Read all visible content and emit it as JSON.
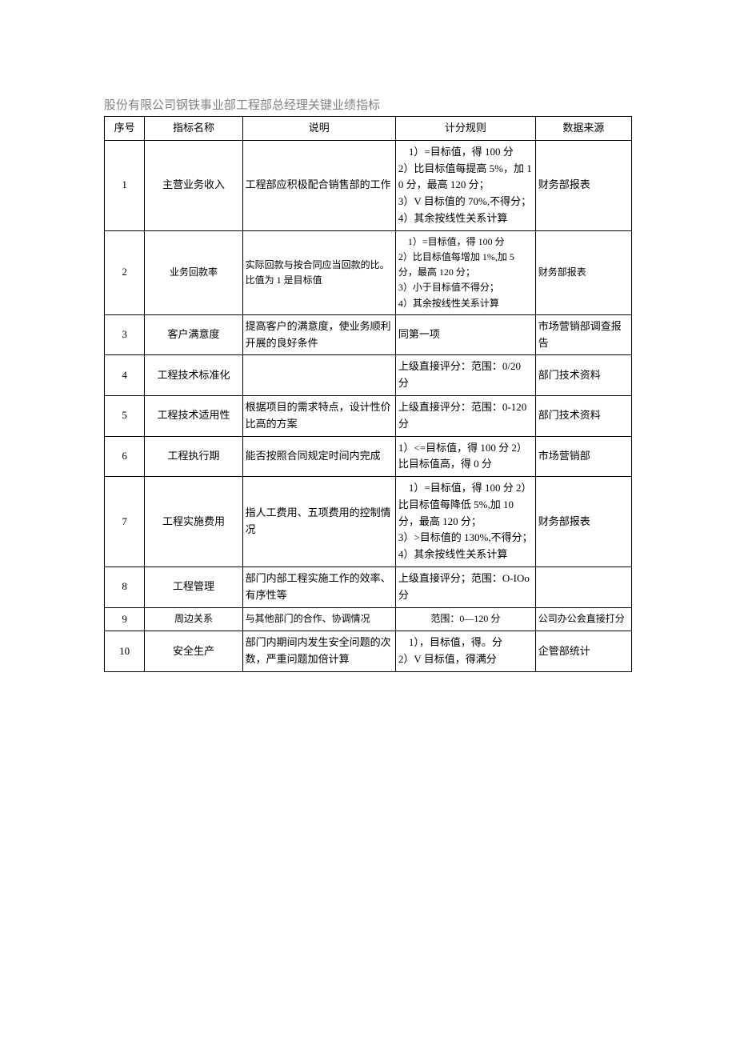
{
  "title": "股份有限公司钢铁事业部工程部总经理关键业绩指标",
  "table": {
    "columns": [
      "序号",
      "指标名称",
      "说明",
      "计分规则",
      "数据来源"
    ],
    "rows": [
      {
        "seq": "1",
        "name": "主营业务收入",
        "desc": "工程部应积极配合销售部的工作",
        "rule": "　1）=目标值，得 100 分\n2）比目标值每提高 5%，加 10 分，最高 120 分；\n3）V 目标值的 70%,不得分；\n4）其余按线性关系计算",
        "src": "财务部报表"
      },
      {
        "seq": "2",
        "name": "业务回款率",
        "desc": "实际回款与按合同应当回款的比。比值为 1 是目标值",
        "rule": "　1）=目标值，得 100 分\n2）比目标值每增加 1%,加 5 分，最高 120 分；\n3）小于目标值不得分；\n4）其余按线性关系计算",
        "src": "财务部报表"
      },
      {
        "seq": "3",
        "name": "客户满意度",
        "desc": "提高客户的满意度，使业务顺利开展的良好条件",
        "rule": "同第一项",
        "src": "市场营销部调查报告"
      },
      {
        "seq": "4",
        "name": "工程技术标准化",
        "desc": "",
        "rule": "上级直接评分：范围：0/20 分",
        "src": "部门技术资料"
      },
      {
        "seq": "5",
        "name": "工程技术适用性",
        "desc": "根据项目的需求特点，设计性价比高的方案",
        "rule": "上级直接评分：范围：0-120 分",
        "src": "部门技术资料"
      },
      {
        "seq": "6",
        "name": "工程执行期",
        "desc": "能否按照合同规定时间内完成",
        "rule": "1）<=目标值，得 100 分 2）比目标值高，得 0 分",
        "src": "市场营销部"
      },
      {
        "seq": "7",
        "name": "工程实施费用",
        "desc": "指人工费用、五项费用的控制情况",
        "rule": "　1）=目标值，得 100 分 2）比目标值每降低 5%,加 10 分，最高 120 分；\n3）>目标值的 130%,不得分；\n4）其余按线性关系计算",
        "src": "财务部报表"
      },
      {
        "seq": "8",
        "name": "工程管理",
        "desc": "部门内部工程实施工作的效率、有序性等",
        "rule": "上级直接评分；范围：O-IOo 分",
        "src": ""
      },
      {
        "seq": "9",
        "name": "周边关系",
        "desc": "与其他部门的合作、协调情况",
        "rule": "范围：0—120 分",
        "src": "公司办公会直接打分"
      },
      {
        "seq": "10",
        "name": "安全生产",
        "desc": "部门内期间内发生安全问题的次数，严重问题加倍计算",
        "rule": "　1），目标值，得。分\n2）V 目标值，得满分",
        "src": "企管部统计"
      }
    ]
  }
}
